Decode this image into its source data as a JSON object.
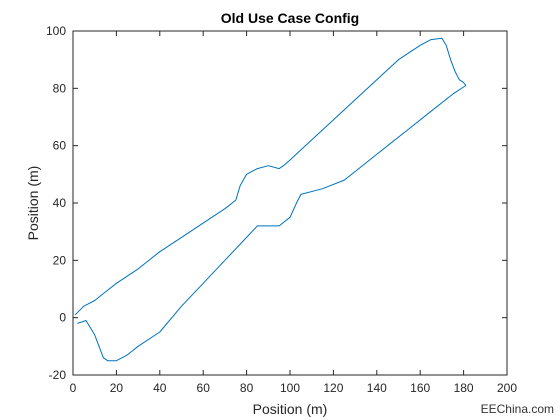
{
  "chart_data": {
    "type": "line",
    "title": "Old Use Case Config",
    "xlabel": "Position (m)",
    "ylabel": "Position (m)",
    "xlim": [
      0,
      200
    ],
    "ylim": [
      -20,
      100
    ],
    "xticks": [
      0,
      20,
      40,
      60,
      80,
      100,
      120,
      140,
      160,
      180,
      200
    ],
    "yticks": [
      -20,
      0,
      20,
      40,
      60,
      80,
      100
    ],
    "grid": false,
    "series": [
      {
        "color": "#0072BD",
        "x": [
          1,
          5,
          10,
          15,
          20,
          30,
          40,
          50,
          60,
          70,
          75,
          77,
          80,
          85,
          90,
          95,
          97,
          100,
          110,
          120,
          130,
          140,
          150,
          160,
          165,
          170,
          172,
          174,
          176,
          178,
          180,
          181,
          175,
          165,
          155,
          145,
          135,
          125,
          115,
          105,
          103,
          100,
          95,
          90,
          85,
          80,
          70,
          60,
          50,
          40,
          30,
          25,
          20,
          16,
          14,
          10,
          6,
          4,
          2
        ],
        "y": [
          1,
          4,
          6,
          9,
          12,
          17,
          23,
          28,
          33,
          38,
          41,
          46,
          50,
          52,
          53,
          52,
          53,
          55,
          62,
          69,
          76,
          83,
          90,
          95,
          97,
          97.5,
          95,
          90,
          86,
          83,
          82,
          81,
          78,
          72,
          66,
          60,
          54,
          48,
          45,
          43,
          40,
          35,
          32,
          32,
          32,
          28,
          20,
          12,
          4,
          -5,
          -10,
          -13,
          -15,
          -15,
          -14,
          -6,
          -1,
          -1.5,
          -2
        ]
      }
    ]
  },
  "watermark": "EEChina.com"
}
